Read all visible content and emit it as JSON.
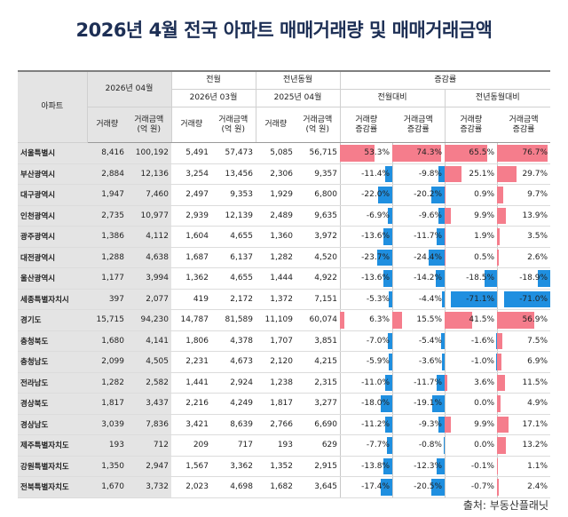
{
  "title": "2026년 4월 전국 아파트 매매거래량 및 매매거래금액",
  "source": "출처: 부동산플래닛",
  "headers": {
    "apt": "아파트",
    "cur_period": "2026년 04월",
    "prev_month": "전월",
    "prev_year": "전년동월",
    "change": "증감률",
    "prev_month_period": "2026년 03월",
    "prev_year_period": "2025년 04월",
    "mom": "전월대비",
    "yoy": "전년동월대비",
    "vol": "거래량",
    "amt1": "거래금액",
    "amt2": "(억 원)",
    "volchg1": "거래량",
    "amtchg1": "거래금액",
    "chg2": "증감률"
  },
  "colors": {
    "positive": "#f57d8c",
    "negative": "#1f8fe0",
    "title": "#1d2f55"
  },
  "rows": [
    {
      "region": "서울특별시",
      "v": "8,416",
      "a": "100,192",
      "pv": "5,491",
      "pa": "57,473",
      "yv": "5,085",
      "ya": "56,715",
      "mv": "53.3%",
      "ma": "74.3%",
      "yvc": "65.5%",
      "yac": "76.7%",
      "n": [
        53.3,
        74.3,
        65.5,
        76.7
      ]
    },
    {
      "region": "부산광역시",
      "v": "2,884",
      "a": "12,136",
      "pv": "3,254",
      "pa": "13,456",
      "yv": "2,306",
      "ya": "9,357",
      "mv": "-11.4%",
      "ma": "-9.8%",
      "yvc": "25.1%",
      "yac": "29.7%",
      "n": [
        -11.4,
        -9.8,
        25.1,
        29.7
      ]
    },
    {
      "region": "대구광역시",
      "v": "1,947",
      "a": "7,460",
      "pv": "2,497",
      "pa": "9,353",
      "yv": "1,929",
      "ya": "6,800",
      "mv": "-22.0%",
      "ma": "-20.2%",
      "yvc": "0.9%",
      "yac": "9.7%",
      "n": [
        -22.0,
        -20.2,
        0.9,
        9.7
      ]
    },
    {
      "region": "인천광역시",
      "v": "2,735",
      "a": "10,977",
      "pv": "2,939",
      "pa": "12,139",
      "yv": "2,489",
      "ya": "9,635",
      "mv": "-6.9%",
      "ma": "-9.6%",
      "yvc": "9.9%",
      "yac": "13.9%",
      "n": [
        -6.9,
        -9.6,
        9.9,
        13.9
      ]
    },
    {
      "region": "광주광역시",
      "v": "1,386",
      "a": "4,112",
      "pv": "1,604",
      "pa": "4,655",
      "yv": "1,360",
      "ya": "3,972",
      "mv": "-13.6%",
      "ma": "-11.7%",
      "yvc": "1.9%",
      "yac": "3.5%",
      "n": [
        -13.6,
        -11.7,
        1.9,
        3.5
      ]
    },
    {
      "region": "대전광역시",
      "v": "1,288",
      "a": "4,638",
      "pv": "1,687",
      "pa": "6,137",
      "yv": "1,282",
      "ya": "4,520",
      "mv": "-23.7%",
      "ma": "-24.4%",
      "yvc": "0.5%",
      "yac": "2.6%",
      "n": [
        -23.7,
        -24.4,
        0.5,
        2.6
      ]
    },
    {
      "region": "울산광역시",
      "v": "1,177",
      "a": "3,994",
      "pv": "1,362",
      "pa": "4,655",
      "yv": "1,444",
      "ya": "4,922",
      "mv": "-13.6%",
      "ma": "-14.2%",
      "yvc": "-18.5%",
      "yac": "-18.9%",
      "n": [
        -13.6,
        -14.2,
        -18.5,
        -18.9
      ]
    },
    {
      "region": "세종특별자치시",
      "v": "397",
      "a": "2,077",
      "pv": "419",
      "pa": "2,172",
      "yv": "1,372",
      "ya": "7,151",
      "mv": "-5.3%",
      "ma": "-4.4%",
      "yvc": "-71.1%",
      "yac": "-71.0%",
      "n": [
        -5.3,
        -4.4,
        -71.1,
        -71.0
      ]
    },
    {
      "region": "경기도",
      "v": "15,715",
      "a": "94,230",
      "pv": "14,787",
      "pa": "81,589",
      "yv": "11,109",
      "ya": "60,074",
      "mv": "6.3%",
      "ma": "15.5%",
      "yvc": "41.5%",
      "yac": "56.9%",
      "n": [
        6.3,
        15.5,
        41.5,
        56.9
      ]
    },
    {
      "region": "충청북도",
      "v": "1,680",
      "a": "4,141",
      "pv": "1,806",
      "pa": "4,378",
      "yv": "1,707",
      "ya": "3,851",
      "mv": "-7.0%",
      "ma": "-5.4%",
      "yvc": "-1.6%",
      "yac": "7.5%",
      "n": [
        -7.0,
        -5.4,
        -1.6,
        7.5
      ]
    },
    {
      "region": "충청남도",
      "v": "2,099",
      "a": "4,505",
      "pv": "2,231",
      "pa": "4,673",
      "yv": "2,120",
      "ya": "4,215",
      "mv": "-5.9%",
      "ma": "-3.6%",
      "yvc": "-1.0%",
      "yac": "6.9%",
      "n": [
        -5.9,
        -3.6,
        -1.0,
        6.9
      ]
    },
    {
      "region": "전라남도",
      "v": "1,282",
      "a": "2,582",
      "pv": "1,441",
      "pa": "2,924",
      "yv": "1,238",
      "ya": "2,315",
      "mv": "-11.0%",
      "ma": "-11.7%",
      "yvc": "3.6%",
      "yac": "11.5%",
      "n": [
        -11.0,
        -11.7,
        3.6,
        11.5
      ]
    },
    {
      "region": "경상북도",
      "v": "1,817",
      "a": "3,437",
      "pv": "2,216",
      "pa": "4,249",
      "yv": "1,817",
      "ya": "3,277",
      "mv": "-18.0%",
      "ma": "-19.1%",
      "yvc": "0.0%",
      "yac": "4.9%",
      "n": [
        -18.0,
        -19.1,
        0.0,
        4.9
      ]
    },
    {
      "region": "경상남도",
      "v": "3,039",
      "a": "7,836",
      "pv": "3,421",
      "pa": "8,639",
      "yv": "2,766",
      "ya": "6,690",
      "mv": "-11.2%",
      "ma": "-9.3%",
      "yvc": "9.9%",
      "yac": "17.1%",
      "n": [
        -11.2,
        -9.3,
        9.9,
        17.1
      ]
    },
    {
      "region": "제주특별자치도",
      "v": "193",
      "a": "712",
      "pv": "209",
      "pa": "717",
      "yv": "193",
      "ya": "629",
      "mv": "-7.7%",
      "ma": "-0.8%",
      "yvc": "0.0%",
      "yac": "13.2%",
      "n": [
        -7.7,
        -0.8,
        0.0,
        13.2
      ]
    },
    {
      "region": "강원특별자치도",
      "v": "1,350",
      "a": "2,947",
      "pv": "1,567",
      "pa": "3,362",
      "yv": "1,352",
      "ya": "2,915",
      "mv": "-13.8%",
      "ma": "-12.3%",
      "yvc": "-0.1%",
      "yac": "1.1%",
      "n": [
        -13.8,
        -12.3,
        -0.1,
        1.1
      ]
    },
    {
      "region": "전북특별자치도",
      "v": "1,670",
      "a": "3,732",
      "pv": "2,023",
      "pa": "4,698",
      "yv": "1,682",
      "ya": "3,645",
      "mv": "-17.4%",
      "ma": "-20.5%",
      "yvc": "-0.7%",
      "yac": "2.4%",
      "n": [
        -17.4,
        -20.5,
        -0.7,
        2.4
      ]
    }
  ]
}
